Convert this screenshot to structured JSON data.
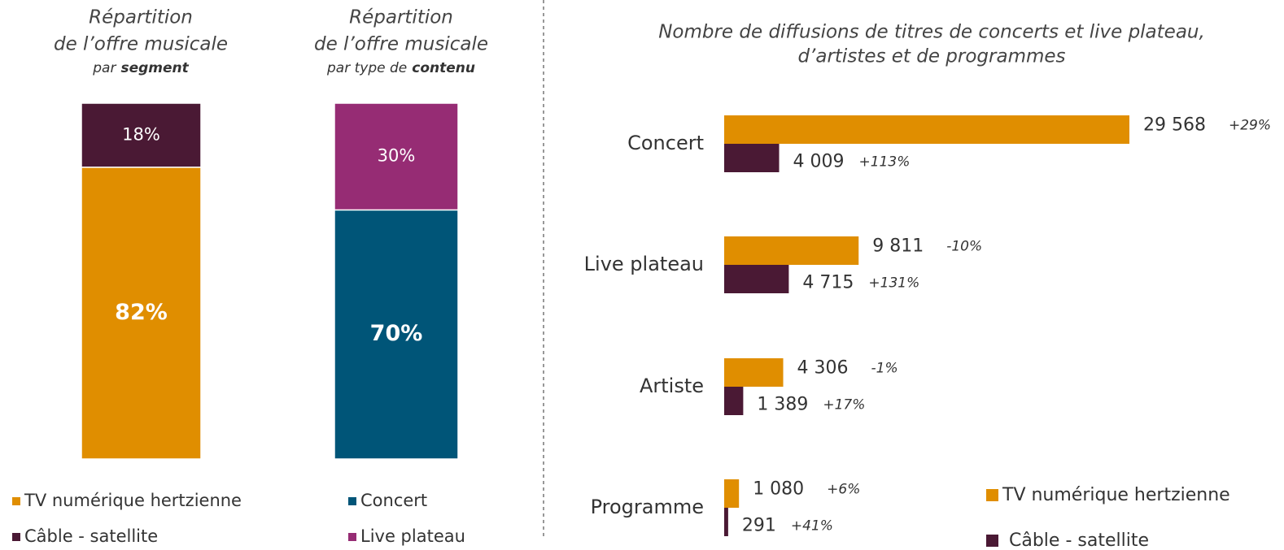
{
  "chart_data": [
    {
      "type": "stacked_bar",
      "title_lines": [
        "Répartition",
        "de l’offre musicale"
      ],
      "subtitle": "par",
      "subtitle_emphasis": "segment",
      "categories": [
        null
      ],
      "series": [
        {
          "name": "TV numérique hertzienne",
          "color": "#e08e00",
          "values": [
            82
          ],
          "value_labels": [
            "82%"
          ]
        },
        {
          "name": "Câble - satellite",
          "color": "#4a1934",
          "values": [
            18
          ],
          "value_labels": [
            "18%"
          ]
        }
      ]
    },
    {
      "type": "stacked_bar",
      "title_lines": [
        "Répartition",
        "de l’offre musicale"
      ],
      "subtitle": "par type de",
      "subtitle_emphasis": "contenu",
      "categories": [
        null
      ],
      "series": [
        {
          "name": "Concert",
          "color": "#005578",
          "values": [
            70
          ],
          "value_labels": [
            "70%"
          ]
        },
        {
          "name": "Live plateau",
          "color": "#962c74",
          "values": [
            30
          ],
          "value_labels": [
            "30%"
          ]
        }
      ]
    },
    {
      "type": "hbar",
      "title_lines": [
        "Nombre de diffusions de titres de concerts et live plateau,",
        "d’artistes et de programmes"
      ],
      "categories": [
        "Concert",
        "Live plateau",
        "Artiste",
        "Programme"
      ],
      "series": [
        {
          "name": "TV numérique hertzienne",
          "color": "#e08e00",
          "values": [
            29568,
            9811,
            4306,
            1080
          ],
          "value_labels": [
            "29 568",
            "9 811",
            "4 306",
            "1 080"
          ],
          "changes": [
            "+29%",
            "-10%",
            "-1%",
            "+6%"
          ]
        },
        {
          "name": "Câble - satellite",
          "color": "#4a1934",
          "values": [
            4009,
            4715,
            1389,
            291
          ],
          "value_labels": [
            "4 009",
            "4 715",
            "1 389",
            "291"
          ],
          "changes": [
            "+113%",
            "+131%",
            "+17%",
            "+41%"
          ]
        }
      ]
    }
  ]
}
